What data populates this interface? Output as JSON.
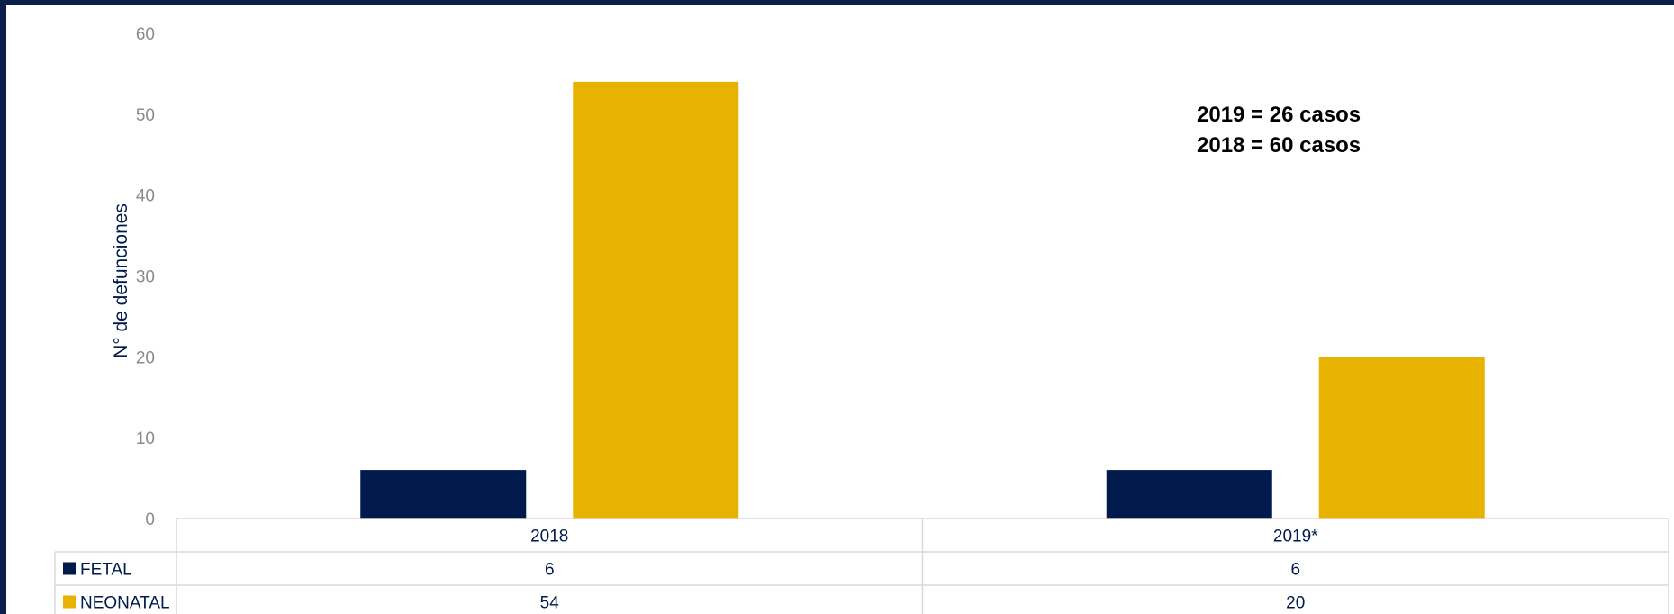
{
  "chart_data": {
    "type": "bar",
    "categories": [
      "2018",
      "2019*"
    ],
    "series": [
      {
        "name": "FETAL",
        "values": [
          6,
          6
        ],
        "color": "#001a4d"
      },
      {
        "name": "NEONATAL",
        "values": [
          54,
          20
        ],
        "color": "#e8b300"
      }
    ],
    "title": "",
    "xlabel": "",
    "ylabel": "N° de defunciones",
    "ylim": [
      0,
      60
    ],
    "yticks": [
      0,
      10,
      20,
      30,
      40,
      50,
      60
    ],
    "grid": false,
    "legend": "data-table",
    "annotations": [
      "2019 = 26 casos",
      "2018 = 60 casos"
    ]
  }
}
